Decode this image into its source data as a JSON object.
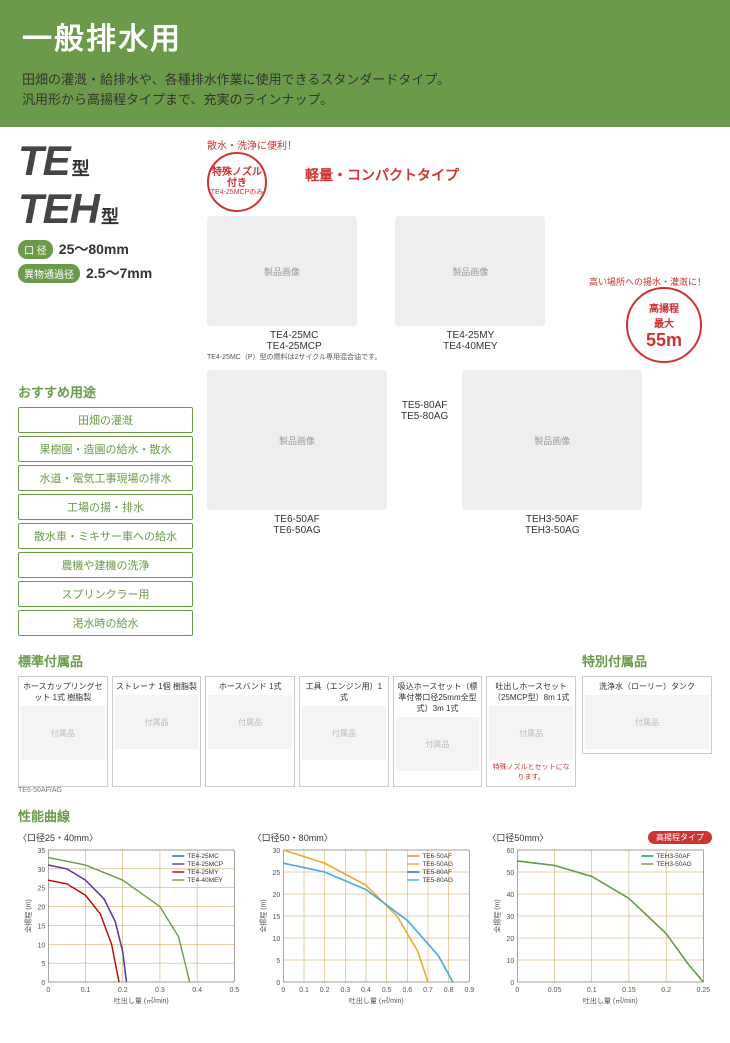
{
  "header": {
    "title": "一般排水用",
    "subtitle1": "田畑の灌漑・給排水や、各種排水作業に使用できるスタンダードタイプ。",
    "subtitle2": "汎用形から高揚程タイプまで、充実のラインナップ。"
  },
  "types": {
    "t1_big": "TE",
    "t1_small": "型",
    "t2_big": "TEH",
    "t2_small": "型"
  },
  "specs": {
    "bore_label": "口 径",
    "bore_val": "25〜80mm",
    "pass_label": "異物通過径",
    "pass_val": "2.5〜7mm"
  },
  "callouts": {
    "spray_curve": "散水・洗浄に便利！",
    "nozzle_main": "特殊ノズル付き",
    "nozzle_sub": "TE4-25MCPのみ",
    "compact": "軽量・コンパクトタイプ",
    "highlift_curve": "高い場所への揚水・灌漑に！",
    "highlift_l1": "高揚程",
    "highlift_l2": "最大",
    "highlift_l3": "55m"
  },
  "products": {
    "p1a": "TE4-25MC",
    "p1b": "TE4-25MCP",
    "p1_note": "TE4-25MC（P）型の燃料は2サイクル専用混合油です。",
    "p2a": "TE4-25MY",
    "p2b": "TE4-40MEY",
    "p3a": "TE6-50AF",
    "p3b": "TE6-50AG",
    "p4a": "TE5-80AF",
    "p4b": "TE5-80AG",
    "p5a": "TEH3-50AF",
    "p5b": "TEH3-50AG",
    "p3_note": "TE6-50AF/AG",
    "img_placeholder": "製品画像"
  },
  "uses": {
    "heading": "おすすめ用途",
    "items": [
      "田畑の灌漑",
      "果樹園・造園の給水・散水",
      "水道・電気工事現場の排水",
      "工場の揚・排水",
      "散水車・ミキサー車への給水",
      "農機や建機の洗浄",
      "スプリンクラー用",
      "渇水時の給水"
    ]
  },
  "accessories": {
    "std_heading": "標準付属品",
    "sp_heading": "特別付属品",
    "items": [
      {
        "name": "ホースカップリングセット 1式 樹脂製"
      },
      {
        "name": "ストレーナ 1個 樹脂製"
      },
      {
        "name": "ホースバンド 1式"
      },
      {
        "name": "工具（エンジン用）1式"
      },
      {
        "name": "吸込ホースセット（標準付帯口径25mm全型式）3m 1式"
      },
      {
        "name": "吐出しホースセット（25MCP型）8m 1式",
        "note": "特殊ノズルとセットになります。"
      }
    ],
    "special": [
      {
        "name": "洗浄水（ローリー）タンク"
      }
    ],
    "icon_placeholder": "付属品"
  },
  "charts": {
    "heading": "性能曲線",
    "axis_y": "全揚程 (m)",
    "axis_x": "吐出し量 (㎥/min)",
    "c1": {
      "title": "〈口径25・40mm〉",
      "xlim": [
        0,
        0.5
      ],
      "ylim": [
        0,
        35
      ],
      "xtick": 0.1,
      "ytick": 5,
      "grid_color": "#c9a050",
      "series": [
        {
          "name": "TE4-25MC",
          "color": "#1e60c8",
          "pts": [
            [
              0,
              31
            ],
            [
              0.05,
              30
            ],
            [
              0.1,
              27
            ],
            [
              0.15,
              22
            ],
            [
              0.18,
              16
            ],
            [
              0.2,
              8
            ],
            [
              0.21,
              0
            ]
          ]
        },
        {
          "name": "TE4-25MCP",
          "color": "#7030a0",
          "pts": [
            [
              0,
              31
            ],
            [
              0.05,
              30
            ],
            [
              0.1,
              27
            ],
            [
              0.15,
              22
            ],
            [
              0.18,
              16
            ],
            [
              0.2,
              8
            ],
            [
              0.21,
              0
            ]
          ]
        },
        {
          "name": "TE4-25MY",
          "color": "#c00000",
          "pts": [
            [
              0,
              27
            ],
            [
              0.05,
              26
            ],
            [
              0.1,
              23
            ],
            [
              0.14,
              18
            ],
            [
              0.17,
              10
            ],
            [
              0.19,
              0
            ]
          ]
        },
        {
          "name": "TE4-40MEY",
          "color": "#6b9b4a",
          "pts": [
            [
              0,
              33
            ],
            [
              0.1,
              31
            ],
            [
              0.2,
              27
            ],
            [
              0.3,
              20
            ],
            [
              0.35,
              12
            ],
            [
              0.38,
              0
            ]
          ]
        }
      ]
    },
    "c2": {
      "title": "〈口径50・80mm〉",
      "xlim": [
        0,
        0.9
      ],
      "ylim": [
        0,
        30
      ],
      "xtick": 0.1,
      "ytick": 5,
      "grid_color": "#c9a050",
      "series": [
        {
          "name": "TE6-50AF",
          "color": "#ed7d31",
          "pts": [
            [
              0,
              30
            ],
            [
              0.2,
              27
            ],
            [
              0.4,
              22
            ],
            [
              0.55,
              15
            ],
            [
              0.65,
              7
            ],
            [
              0.7,
              0
            ]
          ]
        },
        {
          "name": "TE6-50AG",
          "color": "#e8b030",
          "pts": [
            [
              0,
              30
            ],
            [
              0.2,
              27
            ],
            [
              0.4,
              22
            ],
            [
              0.55,
              15
            ],
            [
              0.65,
              7
            ],
            [
              0.7,
              0
            ]
          ]
        },
        {
          "name": "TE5-80AF",
          "color": "#1e60c8",
          "pts": [
            [
              0,
              27
            ],
            [
              0.2,
              25
            ],
            [
              0.4,
              21
            ],
            [
              0.6,
              14
            ],
            [
              0.75,
              6
            ],
            [
              0.82,
              0
            ]
          ]
        },
        {
          "name": "TE5-80AG",
          "color": "#3fb0e8",
          "pts": [
            [
              0,
              27
            ],
            [
              0.2,
              25
            ],
            [
              0.4,
              21
            ],
            [
              0.6,
              14
            ],
            [
              0.75,
              6
            ],
            [
              0.82,
              0
            ]
          ]
        }
      ]
    },
    "c3": {
      "title": "〈口径50mm〉",
      "tag": "高揚程タイプ",
      "xlim": [
        0,
        0.25
      ],
      "ylim": [
        0,
        60
      ],
      "xtick": 0.05,
      "ytick": 10,
      "grid_color": "#c9a050",
      "series": [
        {
          "name": "TEH3-50AF",
          "color": "#00a050",
          "pts": [
            [
              0,
              55
            ],
            [
              0.05,
              53
            ],
            [
              0.1,
              48
            ],
            [
              0.15,
              38
            ],
            [
              0.2,
              22
            ],
            [
              0.23,
              8
            ],
            [
              0.25,
              0
            ]
          ]
        },
        {
          "name": "TEH3-50AG",
          "color": "#6b9b4a",
          "pts": [
            [
              0,
              55
            ],
            [
              0.05,
              53
            ],
            [
              0.1,
              48
            ],
            [
              0.15,
              38
            ],
            [
              0.2,
              22
            ],
            [
              0.23,
              8
            ],
            [
              0.25,
              0
            ]
          ]
        }
      ]
    }
  }
}
